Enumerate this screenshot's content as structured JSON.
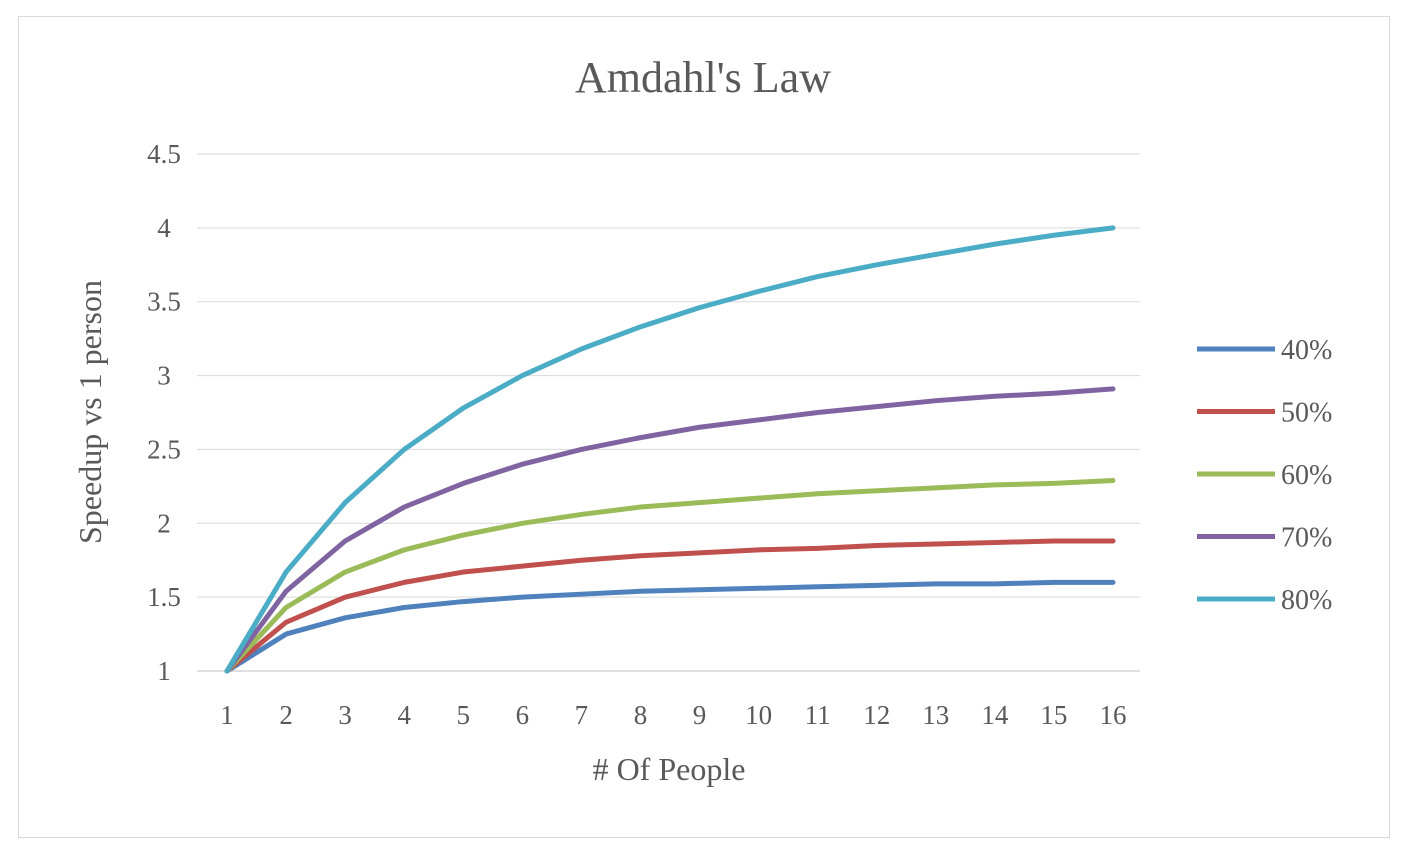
{
  "chart_data": {
    "type": "line",
    "title": "Amdahl's Law",
    "xlabel": "# Of People",
    "ylabel": "Speedup vs 1 person",
    "x": [
      1,
      2,
      3,
      4,
      5,
      6,
      7,
      8,
      9,
      10,
      11,
      12,
      13,
      14,
      15,
      16
    ],
    "ylim": [
      1,
      4.5
    ],
    "yticks": [
      "1",
      "1.5",
      "2",
      "2.5",
      "3",
      "3.5",
      "4",
      "4.5"
    ],
    "grid": true,
    "legend_position": "right",
    "series": [
      {
        "name": "40%",
        "color": "#4F81BD",
        "values": [
          1,
          1.25,
          1.36,
          1.43,
          1.47,
          1.5,
          1.52,
          1.54,
          1.55,
          1.56,
          1.57,
          1.58,
          1.59,
          1.59,
          1.6,
          1.6
        ]
      },
      {
        "name": "50%",
        "color": "#C0504D",
        "values": [
          1,
          1.33,
          1.5,
          1.6,
          1.67,
          1.71,
          1.75,
          1.78,
          1.8,
          1.82,
          1.83,
          1.85,
          1.86,
          1.87,
          1.88,
          1.88
        ]
      },
      {
        "name": "60%",
        "color": "#9BBB59",
        "values": [
          1,
          1.43,
          1.67,
          1.82,
          1.92,
          2,
          2.06,
          2.11,
          2.14,
          2.17,
          2.2,
          2.22,
          2.24,
          2.26,
          2.27,
          2.29
        ]
      },
      {
        "name": "70%",
        "color": "#8064A2",
        "values": [
          1,
          1.54,
          1.88,
          2.11,
          2.27,
          2.4,
          2.5,
          2.58,
          2.65,
          2.7,
          2.75,
          2.79,
          2.83,
          2.86,
          2.88,
          2.91
        ]
      },
      {
        "name": "80%",
        "color": "#4BACC6",
        "values": [
          1,
          1.67,
          2.14,
          2.5,
          2.78,
          3,
          3.18,
          3.33,
          3.46,
          3.57,
          3.67,
          3.75,
          3.82,
          3.89,
          3.95,
          4
        ]
      }
    ]
  }
}
